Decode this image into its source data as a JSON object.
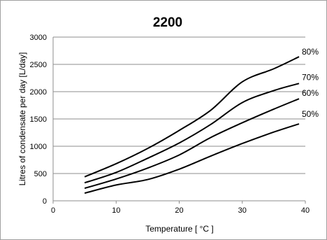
{
  "chart_data": {
    "type": "line",
    "title": "2200",
    "xlabel": "Temperature [ °C ]",
    "ylabel": "Litres of condensate per day [L/day]",
    "xlim": [
      0,
      40
    ],
    "ylim": [
      0,
      3000
    ],
    "xticks": [
      0,
      10,
      20,
      30,
      40
    ],
    "yticks": [
      0,
      500,
      1000,
      1500,
      2000,
      2500,
      3000
    ],
    "grid": "horizontal",
    "legend": "none",
    "series": [
      {
        "name": "80%",
        "color": "#000000",
        "x": [
          5,
          10,
          15,
          20,
          25,
          30,
          35,
          39
        ],
        "y": [
          440,
          680,
          960,
          1290,
          1660,
          2180,
          2420,
          2640
        ]
      },
      {
        "name": "70%",
        "color": "#000000",
        "x": [
          5,
          10,
          15,
          20,
          25,
          30,
          35,
          39
        ],
        "y": [
          330,
          520,
          780,
          1060,
          1400,
          1800,
          2020,
          2150
        ]
      },
      {
        "name": "60%",
        "color": "#000000",
        "x": [
          5,
          10,
          15,
          20,
          25,
          30,
          35,
          39
        ],
        "y": [
          230,
          400,
          600,
          840,
          1160,
          1430,
          1680,
          1870
        ]
      },
      {
        "name": "50%",
        "color": "#000000",
        "x": [
          5,
          10,
          15,
          20,
          25,
          30,
          35,
          39
        ],
        "y": [
          140,
          290,
          390,
          580,
          820,
          1050,
          1260,
          1410
        ]
      }
    ]
  }
}
